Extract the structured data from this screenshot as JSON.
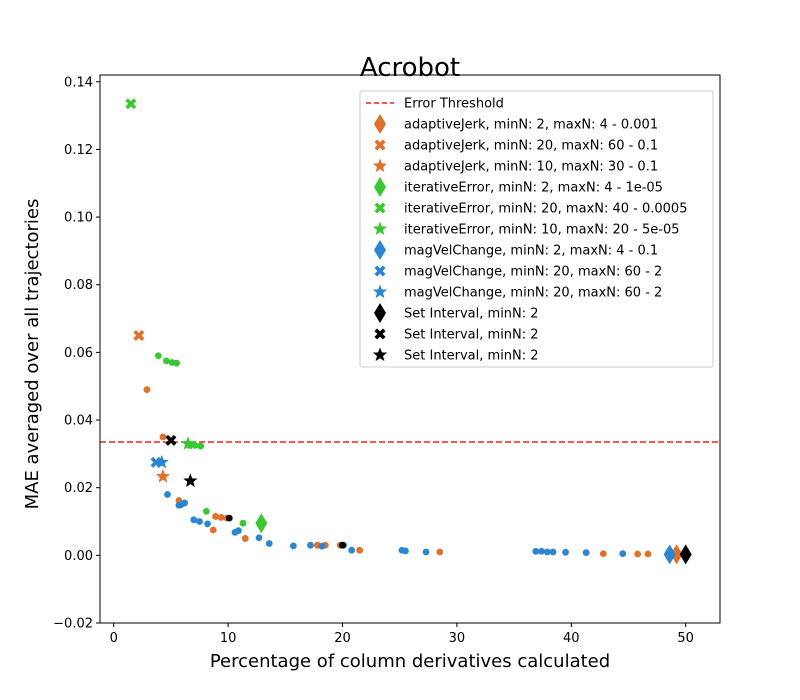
{
  "chart_data": {
    "type": "scatter",
    "title": "Acrobot",
    "xlabel": "Percentage of column derivatives calculated",
    "ylabel": "MAE averaged over all trajectories",
    "xlim": [
      -1.2,
      53
    ],
    "ylim": [
      -0.02,
      0.142
    ],
    "xticks": [
      0,
      10,
      20,
      30,
      40,
      50
    ],
    "yticks": [
      -0.02,
      0.0,
      0.02,
      0.04,
      0.06,
      0.08,
      0.1,
      0.12,
      0.14
    ],
    "ytick_labels": [
      "−0.02",
      "0.00",
      "0.02",
      "0.04",
      "0.06",
      "0.08",
      "0.10",
      "0.12",
      "0.14"
    ],
    "grid": false,
    "legend_position": "top-right",
    "threshold": {
      "name": "Error Threshold",
      "y": 0.0335,
      "color": "#e8241e"
    },
    "colors": {
      "adaptive": "#e0702a",
      "iterative": "#3ac832",
      "mag": "#2b86d1",
      "set": "#000000"
    },
    "dot_series": [
      {
        "color": "#e0702a",
        "points": [
          [
            2.9,
            0.049
          ],
          [
            4.3,
            0.035
          ],
          [
            5.7,
            0.0162
          ],
          [
            8.7,
            0.0075
          ],
          [
            8.9,
            0.0115
          ],
          [
            9.4,
            0.0112
          ],
          [
            9.9,
            0.011
          ],
          [
            11.5,
            0.005
          ],
          [
            17.8,
            0.003
          ],
          [
            18.5,
            0.003
          ],
          [
            19.8,
            0.003
          ],
          [
            21.5,
            0.0015
          ],
          [
            28.5,
            0.001
          ],
          [
            42.8,
            0.0005
          ],
          [
            45.8,
            0.0004
          ],
          [
            46.7,
            0.0004
          ]
        ]
      },
      {
        "color": "#3ac832",
        "points": [
          [
            3.9,
            0.059
          ],
          [
            4.6,
            0.0575
          ],
          [
            5.1,
            0.057
          ],
          [
            5.5,
            0.0568
          ],
          [
            6.6,
            0.0325
          ],
          [
            7.1,
            0.0325
          ],
          [
            7.6,
            0.0323
          ],
          [
            8.1,
            0.013
          ],
          [
            11.3,
            0.0095
          ]
        ]
      },
      {
        "color": "#2b86d1",
        "points": [
          [
            4.7,
            0.018
          ],
          [
            5.7,
            0.0148
          ],
          [
            5.9,
            0.015
          ],
          [
            6.2,
            0.0155
          ],
          [
            7.0,
            0.0105
          ],
          [
            7.5,
            0.01
          ],
          [
            8.2,
            0.0093
          ],
          [
            10.6,
            0.0068
          ],
          [
            10.9,
            0.0073
          ],
          [
            12.7,
            0.0052
          ],
          [
            13.6,
            0.0035
          ],
          [
            15.7,
            0.0028
          ],
          [
            17.2,
            0.003
          ],
          [
            18.2,
            0.0027
          ],
          [
            20.1,
            0.003
          ],
          [
            20.8,
            0.0015
          ],
          [
            25.2,
            0.0015
          ],
          [
            25.5,
            0.0013
          ],
          [
            27.3,
            0.001
          ],
          [
            36.9,
            0.0012
          ],
          [
            37.4,
            0.0012
          ],
          [
            37.9,
            0.001
          ],
          [
            38.4,
            0.001
          ],
          [
            39.5,
            0.0009
          ],
          [
            41.3,
            0.0008
          ],
          [
            44.5,
            0.0005
          ]
        ]
      },
      {
        "color": "#000000",
        "points": [
          [
            10.1,
            0.011
          ],
          [
            20.0,
            0.003
          ]
        ]
      }
    ],
    "marker_points": [
      {
        "marker": "diamond",
        "color": "#e0702a",
        "x": 49.2,
        "y": 0.0003
      },
      {
        "marker": "x",
        "color": "#e0702a",
        "x": 2.2,
        "y": 0.065
      },
      {
        "marker": "star",
        "color": "#e0702a",
        "x": 4.3,
        "y": 0.0233
      },
      {
        "marker": "diamond",
        "color": "#3ac832",
        "x": 12.9,
        "y": 0.0095
      },
      {
        "marker": "x",
        "color": "#3ac832",
        "x": 1.5,
        "y": 0.1335
      },
      {
        "marker": "star",
        "color": "#3ac832",
        "x": 6.5,
        "y": 0.033
      },
      {
        "marker": "diamond",
        "color": "#2b86d1",
        "x": 48.6,
        "y": 0.0003
      },
      {
        "marker": "x",
        "color": "#2b86d1",
        "x": 3.7,
        "y": 0.0275
      },
      {
        "marker": "star",
        "color": "#2b86d1",
        "x": 4.2,
        "y": 0.0275
      },
      {
        "marker": "diamond",
        "color": "#000000",
        "x": 50.0,
        "y": 0.0003
      },
      {
        "marker": "x",
        "color": "#000000",
        "x": 5.0,
        "y": 0.034
      },
      {
        "marker": "star",
        "color": "#000000",
        "x": 6.7,
        "y": 0.022
      }
    ],
    "legend": [
      {
        "label": "Error Threshold",
        "marker": "dashline",
        "color": "#e8241e"
      },
      {
        "label": "adaptiveJerk, minN: 2, maxN: 4 - 0.001",
        "marker": "diamond",
        "color": "#e0702a"
      },
      {
        "label": "adaptiveJerk, minN: 20, maxN: 60 - 0.1",
        "marker": "x",
        "color": "#e0702a"
      },
      {
        "label": "adaptiveJerk, minN: 10, maxN: 30 - 0.1",
        "marker": "star",
        "color": "#e0702a"
      },
      {
        "label": "iterativeError, minN: 2, maxN: 4 - 1e-05",
        "marker": "diamond",
        "color": "#3ac832"
      },
      {
        "label": "iterativeError, minN: 20, maxN: 40 - 0.0005",
        "marker": "x",
        "color": "#3ac832"
      },
      {
        "label": "iterativeError, minN: 10, maxN: 20 - 5e-05",
        "marker": "star",
        "color": "#3ac832"
      },
      {
        "label": "magVelChange, minN: 2, maxN: 4 - 0.1",
        "marker": "diamond",
        "color": "#2b86d1"
      },
      {
        "label": "magVelChange, minN: 20, maxN: 60 - 2",
        "marker": "x",
        "color": "#2b86d1"
      },
      {
        "label": "magVelChange, minN: 20, maxN: 60 - 2",
        "marker": "star",
        "color": "#2b86d1"
      },
      {
        "label": "Set Interval, minN: 2",
        "marker": "diamond",
        "color": "#000000"
      },
      {
        "label": "Set Interval, minN: 2",
        "marker": "x",
        "color": "#000000"
      },
      {
        "label": "Set Interval, minN: 2",
        "marker": "star",
        "color": "#000000"
      }
    ]
  }
}
